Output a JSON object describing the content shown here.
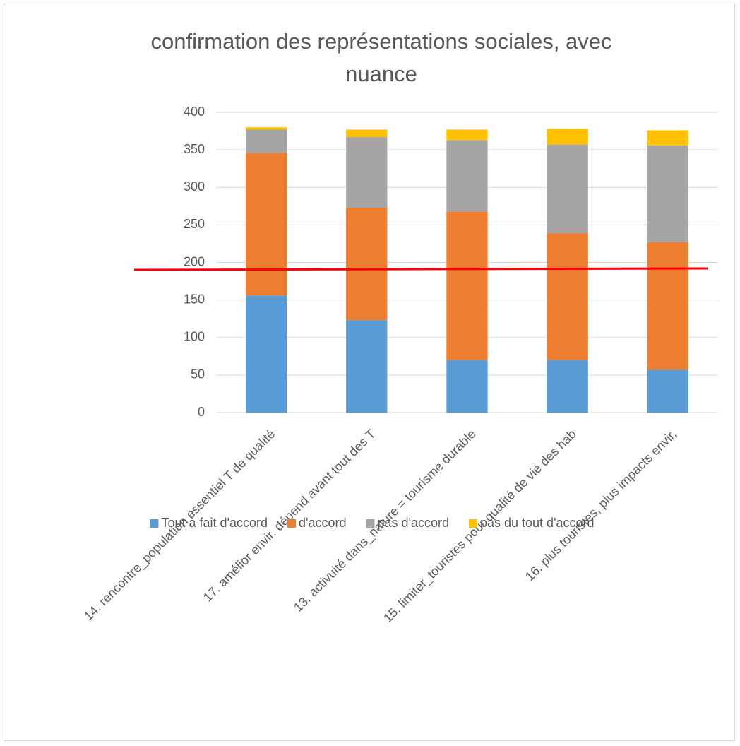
{
  "chart_data": {
    "type": "stacked_bar",
    "title": "confirmation des représentations sociales, avec nuance",
    "categories": [
      "14. rencontre_population essentiel T de qualité",
      "17. amélior envir. dépend avant tout des T",
      "13. activuité dans_nature = tourisme durable",
      "15. limiter_touristes pour qualité de vie des hab",
      "16. plus touristes, plus impacts envir,"
    ],
    "series": [
      {
        "name": "Tout à fait d'accord",
        "color": "#5b9bd5",
        "values": [
          156,
          123,
          70,
          70,
          57
        ]
      },
      {
        "name": "d'accord",
        "color": "#ed7d31",
        "values": [
          190,
          150,
          198,
          169,
          170
        ]
      },
      {
        "name": "pas d'accord",
        "color": "#a5a5a5",
        "values": [
          31,
          94,
          95,
          118,
          129
        ]
      },
      {
        "name": "pas du tout d'accord",
        "color": "#ffc000",
        "values": [
          3,
          10,
          14,
          21,
          20
        ]
      }
    ],
    "ylim": [
      0,
      400
    ],
    "yticks": [
      0,
      50,
      100,
      150,
      200,
      250,
      300,
      350,
      400
    ],
    "grid": true,
    "legend": "bottom"
  }
}
